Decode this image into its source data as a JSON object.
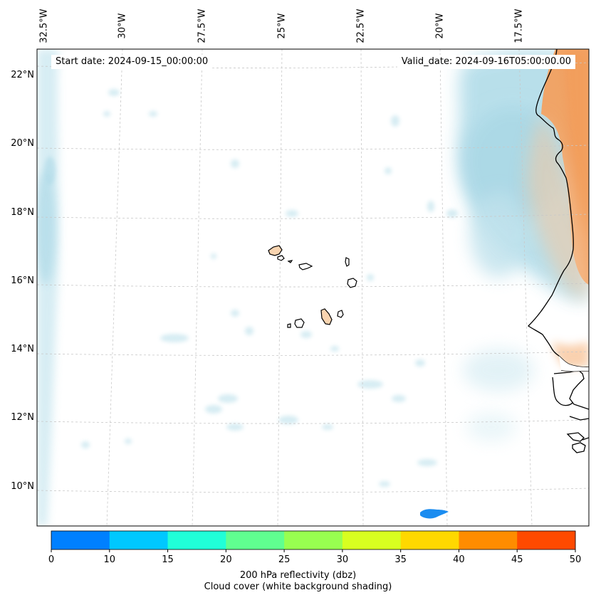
{
  "map": {
    "start_date": "Start date: 2024-09-15_00:00:00",
    "valid_date": "Valid_date: 2024-09-16T05:00:00.00",
    "lon_labels": [
      "32.5°W",
      "30°W",
      "27.5°W",
      "25°W",
      "22.5°W",
      "20°W",
      "17.5°W"
    ],
    "lat_labels": [
      "22°N",
      "20°N",
      "18°N",
      "16°N",
      "14°N",
      "12°N",
      "10°N"
    ],
    "region": "Cape Verde / West Africa coast"
  },
  "colorbar": {
    "ticks": [
      "0",
      "10",
      "15",
      "20",
      "25",
      "30",
      "35",
      "40",
      "45",
      "50"
    ],
    "colors": [
      "#0080ff",
      "#00c8ff",
      "#20ffd8",
      "#60ff90",
      "#98ff50",
      "#d8ff20",
      "#ffd800",
      "#ff8c00",
      "#ff4a00"
    ],
    "label_line1": "200 hPa reflectivity (dbz)",
    "label_line2": "Cloud cover (white background shading)"
  },
  "colors": {
    "cloud": "#a8d8e6",
    "land_shade": "#f2a060",
    "island_fill": "#f8d4b0",
    "echo": "#1a8cf0"
  }
}
